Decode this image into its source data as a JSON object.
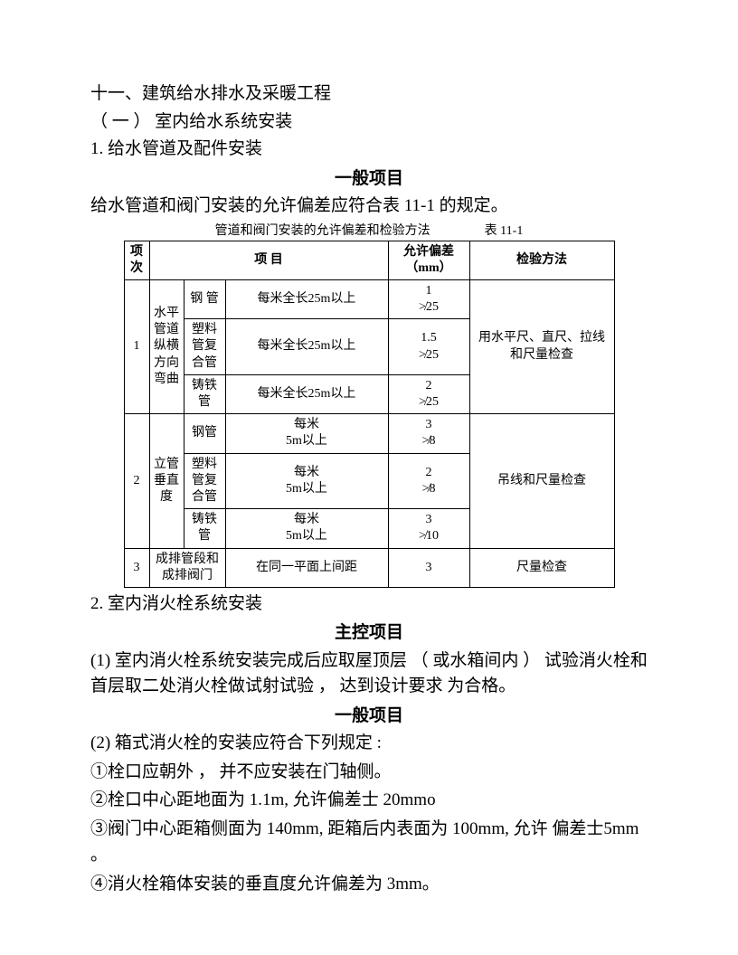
{
  "headings": {
    "h1": "十一、建筑给水排水及采暖工程",
    "h2": "（ 一 ） 室内给水系统安装",
    "h3_1": "1.  给水管道及配件安装",
    "sec_general_1": "一般项目",
    "intro_1": "给水管道和阀门安装的允许偏差应符合表 11-1 的规定。",
    "table_caption_left": "管道和阀门安装的允许偏差和检验方法",
    "table_caption_right": "表 11-1",
    "h3_2": "2.  室内消火栓系统安装",
    "sec_main": "主控项目",
    "p_main_1": "(1) 室内消火栓系统安装完成后应取屋顶层 （ 或水箱间内 ） 试验消火栓和首层取二处消火栓做试射试验 ， 达到设计要求 为合格。",
    "sec_general_2": "一般项目",
    "p_g2_intro": "(2) 箱式消火栓的安装应符合下列规定 :",
    "li1": "①栓口应朝外 ， 并不应安装在门轴侧。",
    "li2": "②栓口中心距地面为 1.1m, 允许偏差士 20mmo",
    "li3": "③阀门中心距箱侧面为 140mm, 距箱后内表面为 100mm, 允许 偏差士5mm 。",
    "li4": "④消火栓箱体安装的垂直度允许偏差为 3mm。"
  },
  "table": {
    "header": {
      "c1": "项次",
      "c2": "项        目",
      "c3": "允许偏差（mm）",
      "c4": "检验方法"
    },
    "group1": {
      "xu": "1",
      "cat": "水平管道纵横方向弯曲",
      "rows": [
        {
          "mat": "钢 管",
          "desc": "每米全长25m以上",
          "dev": "1\n≯25"
        },
        {
          "mat": "塑料管复合管",
          "desc": "每米全长25m以上",
          "dev": "1.5\n≯25"
        },
        {
          "mat": "铸铁管",
          "desc": "每米全长25m以上",
          "dev": "2\n≯25"
        }
      ],
      "method": "用水平尺、直尺、拉线和尺量检查"
    },
    "group2": {
      "xu": "2",
      "cat": "立管垂直度",
      "rows": [
        {
          "mat": "钢管",
          "desc": "每米\n5m以上",
          "dev": "3\n≯8"
        },
        {
          "mat": "塑料管复合管",
          "desc": "每米\n5m以上",
          "dev": "2\n≯8"
        },
        {
          "mat": "铸铁管",
          "desc": "每米\n5m以上",
          "dev": "3\n≯10"
        }
      ],
      "method": "吊线和尺量检查"
    },
    "group3": {
      "xu": "3",
      "cat": "成排管段和成排阀门",
      "desc": "在同一平面上间距",
      "dev": "3",
      "method": "尺量检查"
    }
  }
}
